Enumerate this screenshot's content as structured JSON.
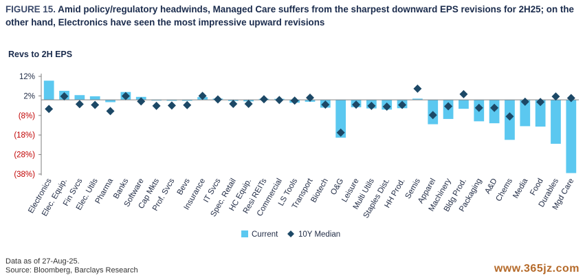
{
  "header": {
    "figure_label": "FIGURE 15.",
    "title": "Amid policy/regulatory headwinds, Managed Care suffers from the sharpest downward EPS revisions for 2H25; on the other hand, Electronics have seen the most impressive upward revisions"
  },
  "footer": {
    "line1": "Data as of 27-Aug-25.",
    "line2": "Source: Bloomberg, Barclays Research",
    "watermark": "www.365jz.com"
  },
  "colors": {
    "bar": "#5bc8f0",
    "marker": "#1c4866",
    "negative_tick": "#c00000",
    "axis": "#7f7f7f"
  },
  "chart_data": {
    "type": "bar",
    "ylabel": "Revs to 2H EPS",
    "ylim": [
      -38,
      12
    ],
    "yticks": [
      12,
      2,
      -8,
      -18,
      -28,
      -38
    ],
    "ytick_labels": [
      "12%",
      "2%",
      "(8%)",
      "(18%)",
      "(28%)",
      "(38%)"
    ],
    "categories": [
      "Electronics",
      "Elec. Equip.",
      "Fin Svcs",
      "Elec. Utils",
      "Pharma",
      "Banks",
      "Software",
      "Cap Mkts",
      "Prof. Svcs",
      "Bevs",
      "Insurance",
      "IT Svcs",
      "Spec. Retail",
      "HC Equip.",
      "Resi REITs",
      "Commercial",
      "LS Tools",
      "Transport",
      "Biotech",
      "O&G",
      "Leisure",
      "Multi Utils",
      "Staples Dist.",
      "HH Prod.",
      "Semis",
      "Apparel",
      "Machinery",
      "Bldg Prod.",
      "Packaging",
      "A&D",
      "Chems",
      "Media",
      "Food",
      "Durables",
      "Mgd Care"
    ],
    "series": [
      {
        "name": "Current",
        "type": "bar",
        "values": [
          9.8,
          4.6,
          2.4,
          1.8,
          -1.2,
          4.0,
          1.5,
          -0.4,
          -0.5,
          -0.5,
          1.4,
          0.6,
          -0.6,
          -0.8,
          0.5,
          0.5,
          -1.5,
          -1.0,
          -4.0,
          -19.4,
          -3.8,
          -4.4,
          -5.0,
          -4.3,
          0.6,
          -12.5,
          -9.8,
          -4.6,
          -11.0,
          -12.0,
          -20.5,
          -13.5,
          -13.7,
          -22.5,
          -37.5
        ]
      },
      {
        "name": "10Y Median",
        "type": "marker",
        "values": [
          -4.7,
          1.8,
          -2.2,
          -2.6,
          -5.8,
          1.9,
          -0.8,
          -3.1,
          -2.9,
          -2.7,
          2.0,
          0.2,
          -2.1,
          -2.1,
          0.3,
          -0.1,
          -0.4,
          1.1,
          -2.5,
          -16.8,
          -2.5,
          -3.1,
          -3.5,
          -2.6,
          5.7,
          -7.8,
          -3.3,
          2.9,
          -4.1,
          -4.1,
          -8.5,
          -1.0,
          -1.1,
          1.7,
          0.9
        ]
      }
    ]
  }
}
